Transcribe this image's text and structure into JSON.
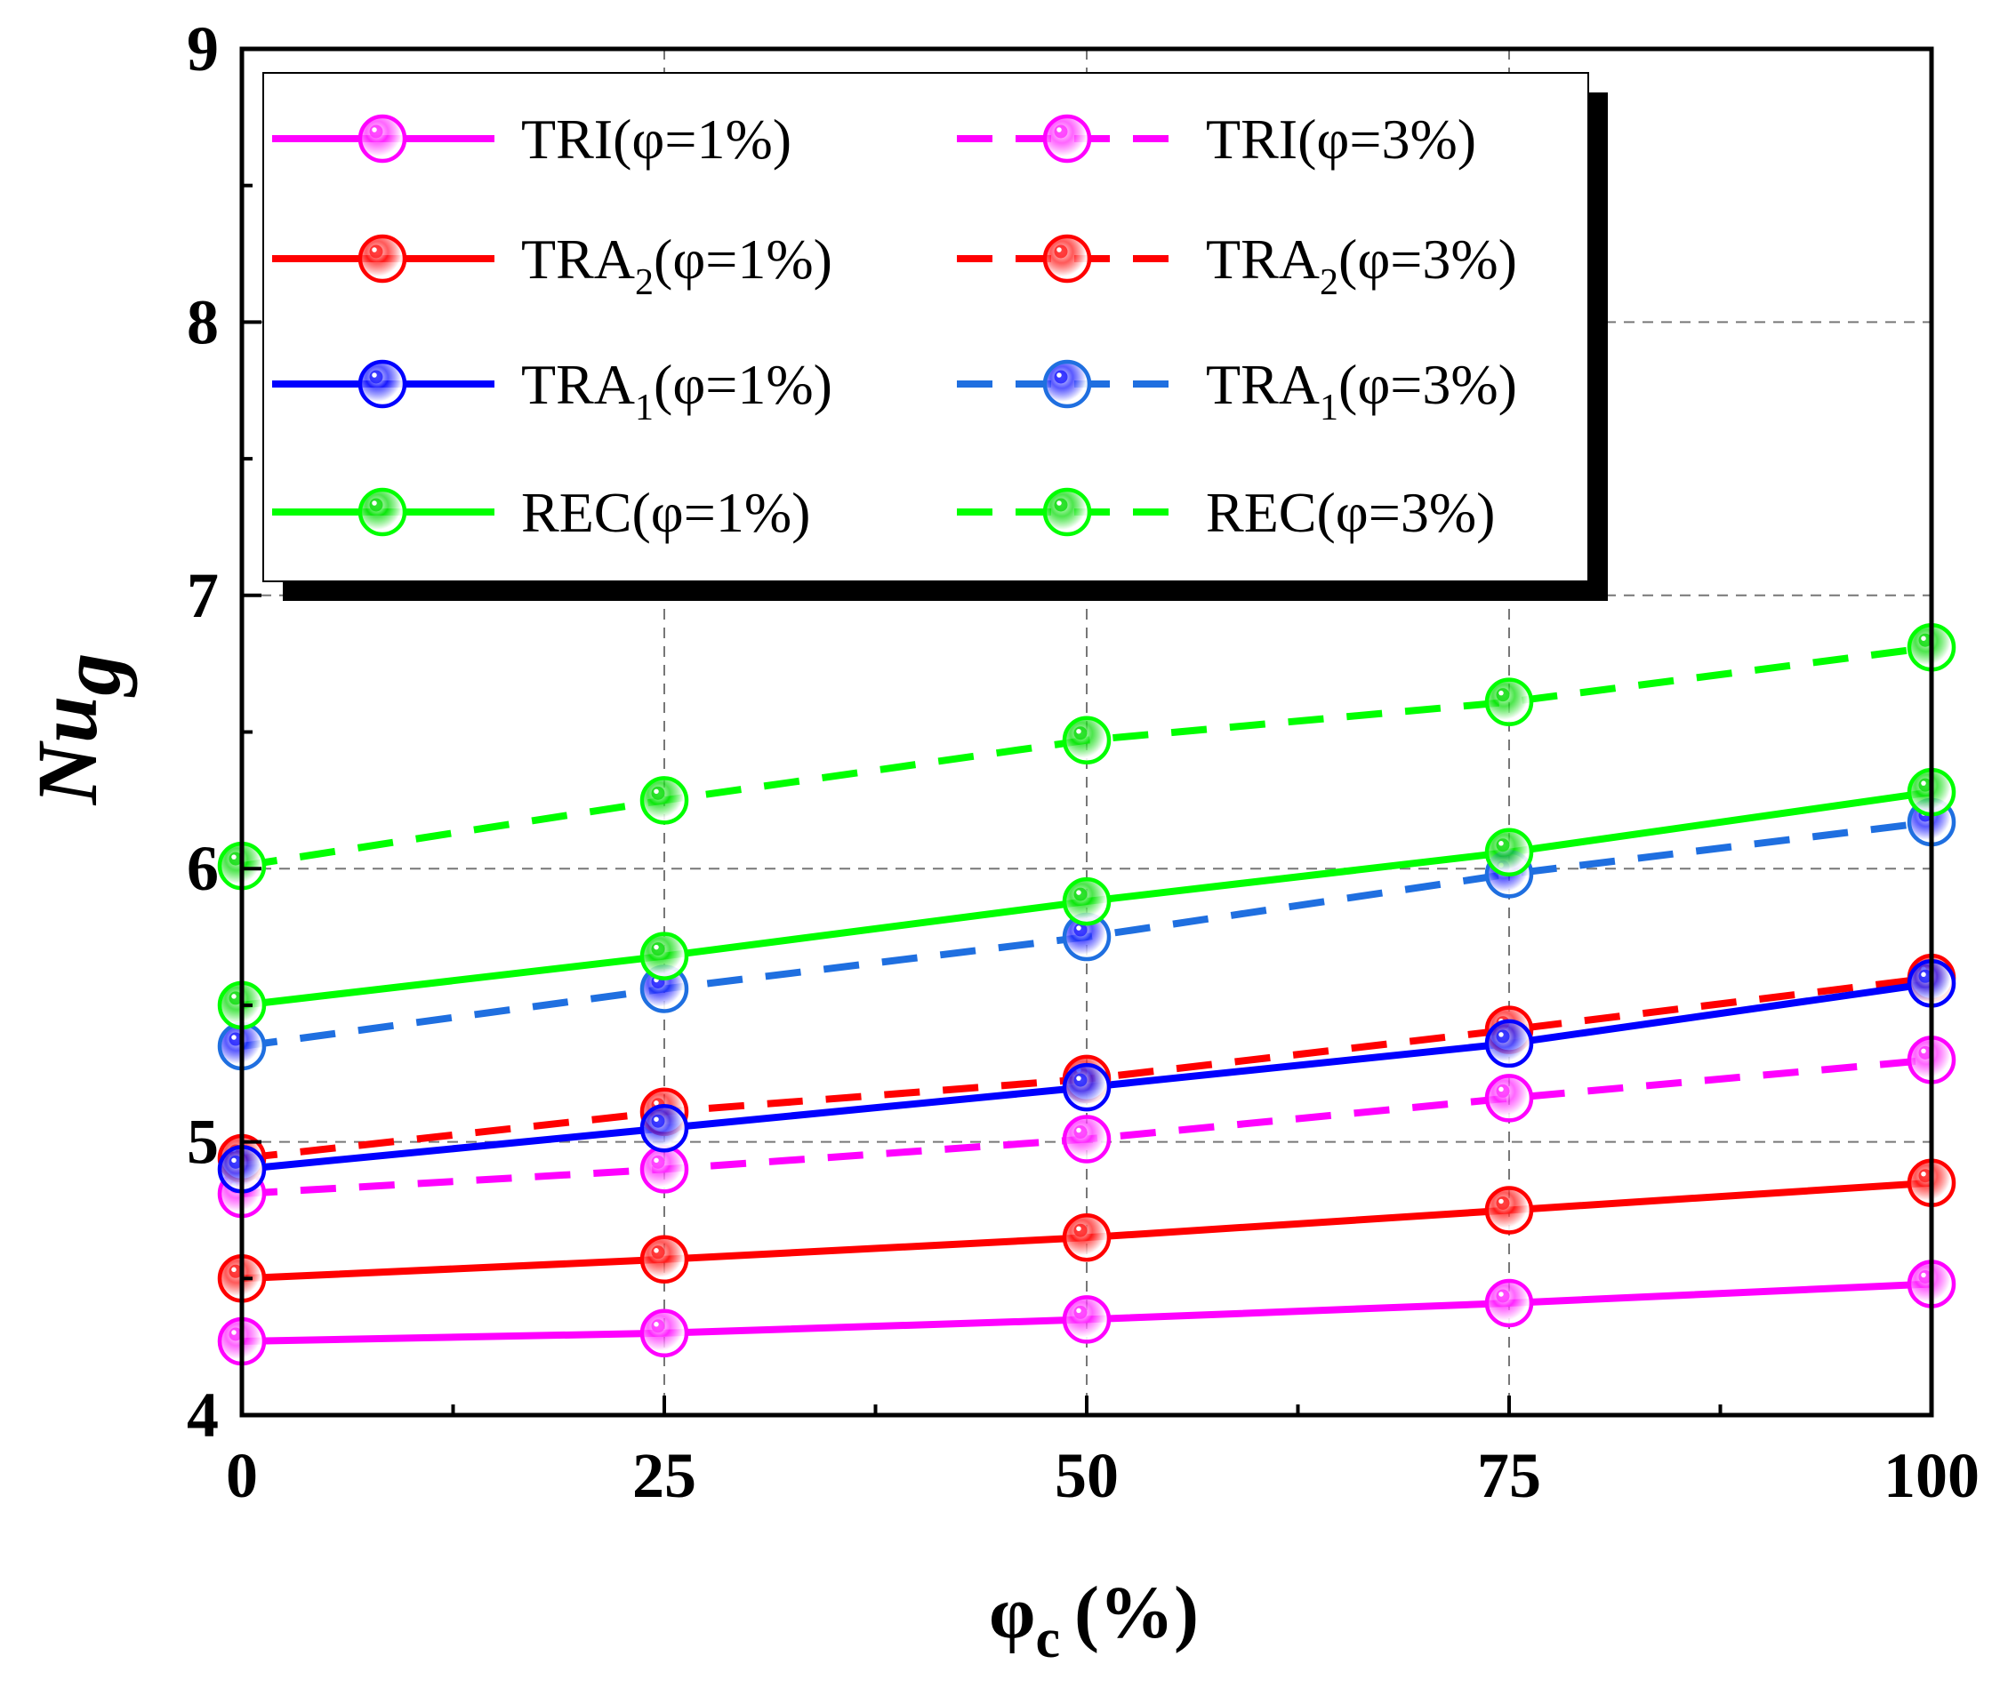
{
  "chart_data": {
    "type": "line",
    "x": [
      0,
      25,
      50,
      75,
      100
    ],
    "xlim": [
      0,
      100
    ],
    "ylim": [
      4,
      9
    ],
    "xticks": [
      "0",
      "25",
      "50",
      "75",
      "100"
    ],
    "yticks": [
      "4",
      "5",
      "6",
      "7",
      "8",
      "9"
    ],
    "xlabel": {
      "main": "φ",
      "sub": "c",
      "unit": "(%)"
    },
    "ylabel": {
      "main": "Nu",
      "sub": "g"
    },
    "grid": true,
    "legend_position": "top-left, two columns",
    "series": [
      {
        "name": "TRI(φ=1%)",
        "label": {
          "prefix": "TRI",
          "sub": "",
          "suffix": "(φ=1%)"
        },
        "color": "#ff00ff",
        "dash": "solid",
        "values": [
          4.27,
          4.3,
          4.35,
          4.41,
          4.48
        ]
      },
      {
        "name": "TRI(φ=3%)",
        "label": {
          "prefix": "TRI",
          "sub": "",
          "suffix": "(φ=3%)"
        },
        "color": "#ff00ff",
        "dash": "dashed",
        "values": [
          4.81,
          4.9,
          5.01,
          5.16,
          5.3
        ]
      },
      {
        "name": "TRA2(φ=1%)",
        "label": {
          "prefix": "TRA",
          "sub": "2",
          "suffix": "(φ=1%)"
        },
        "color": "#ff0000",
        "dash": "solid",
        "values": [
          4.5,
          4.57,
          4.65,
          4.75,
          4.85
        ]
      },
      {
        "name": "TRA2(φ=3%)",
        "label": {
          "prefix": "TRA",
          "sub": "2",
          "suffix": "(φ=3%)"
        },
        "color": "#ff0000",
        "dash": "dashed",
        "values": [
          4.94,
          5.11,
          5.23,
          5.41,
          5.6
        ]
      },
      {
        "name": "TRA1(φ=1%)",
        "label": {
          "prefix": "TRA",
          "sub": "1",
          "suffix": "(φ=1%)"
        },
        "color": "#0000ff",
        "dash": "solid",
        "values": [
          4.9,
          5.05,
          5.2,
          5.36,
          5.58
        ]
      },
      {
        "name": "TRA1(φ=3%)",
        "label": {
          "prefix": "TRA",
          "sub": "1",
          "suffix": "(φ=3%)"
        },
        "color": "#1f6fe0",
        "dash": "dashed",
        "values": [
          5.35,
          5.56,
          5.75,
          5.98,
          6.17
        ]
      },
      {
        "name": "REC(φ=1%)",
        "label": {
          "prefix": "REC",
          "sub": "",
          "suffix": "(φ=1%)"
        },
        "color": "#00ff00",
        "dash": "solid",
        "values": [
          5.5,
          5.68,
          5.88,
          6.06,
          6.28
        ]
      },
      {
        "name": "REC(φ=3%)",
        "label": {
          "prefix": "REC",
          "sub": "",
          "suffix": "(φ=3%)"
        },
        "color": "#00ff00",
        "dash": "dashed",
        "values": [
          6.01,
          6.25,
          6.47,
          6.61,
          6.81
        ]
      }
    ],
    "marker_colors": {
      "#ff00ff": "#ff33ff",
      "#ff0000": "#ff2222",
      "#0000ff": "#2222ff",
      "#1f6fe0": "#2222ff",
      "#00ff00": "#11dd11"
    }
  }
}
